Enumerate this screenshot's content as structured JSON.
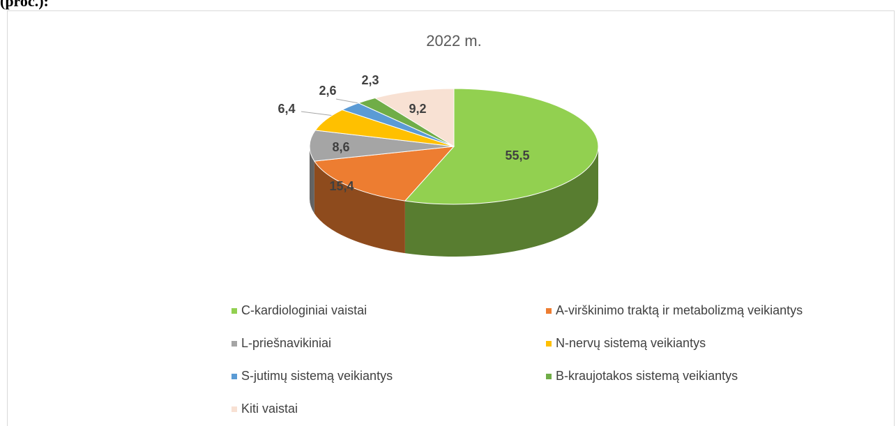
{
  "caption": "(proc.):",
  "chart_data": {
    "type": "pie3d",
    "title": "2022 m.",
    "categories": [
      "C-kardiologiniai vaistai",
      "A-virškinimo traktą ir metabolizmą veikiantys",
      "L-priešnavikiniai",
      "N-nervų sistemą veikiantys",
      "S-jutimų sistemą veikiantys",
      "B-kraujotakos sistemą veikiantys",
      "Kiti vaistai"
    ],
    "values": [
      55.5,
      15.4,
      8.6,
      6.4,
      2.6,
      2.3,
      9.2
    ],
    "value_labels": [
      "55,5",
      "15,4",
      "8,6",
      "6,4",
      "2,6",
      "2,3",
      "9,2"
    ],
    "colors": [
      "#92d050",
      "#ed7d31",
      "#a5a5a5",
      "#ffc000",
      "#5b9bd5",
      "#70ad47",
      "#f8e1d3"
    ],
    "legend": "bottom"
  }
}
